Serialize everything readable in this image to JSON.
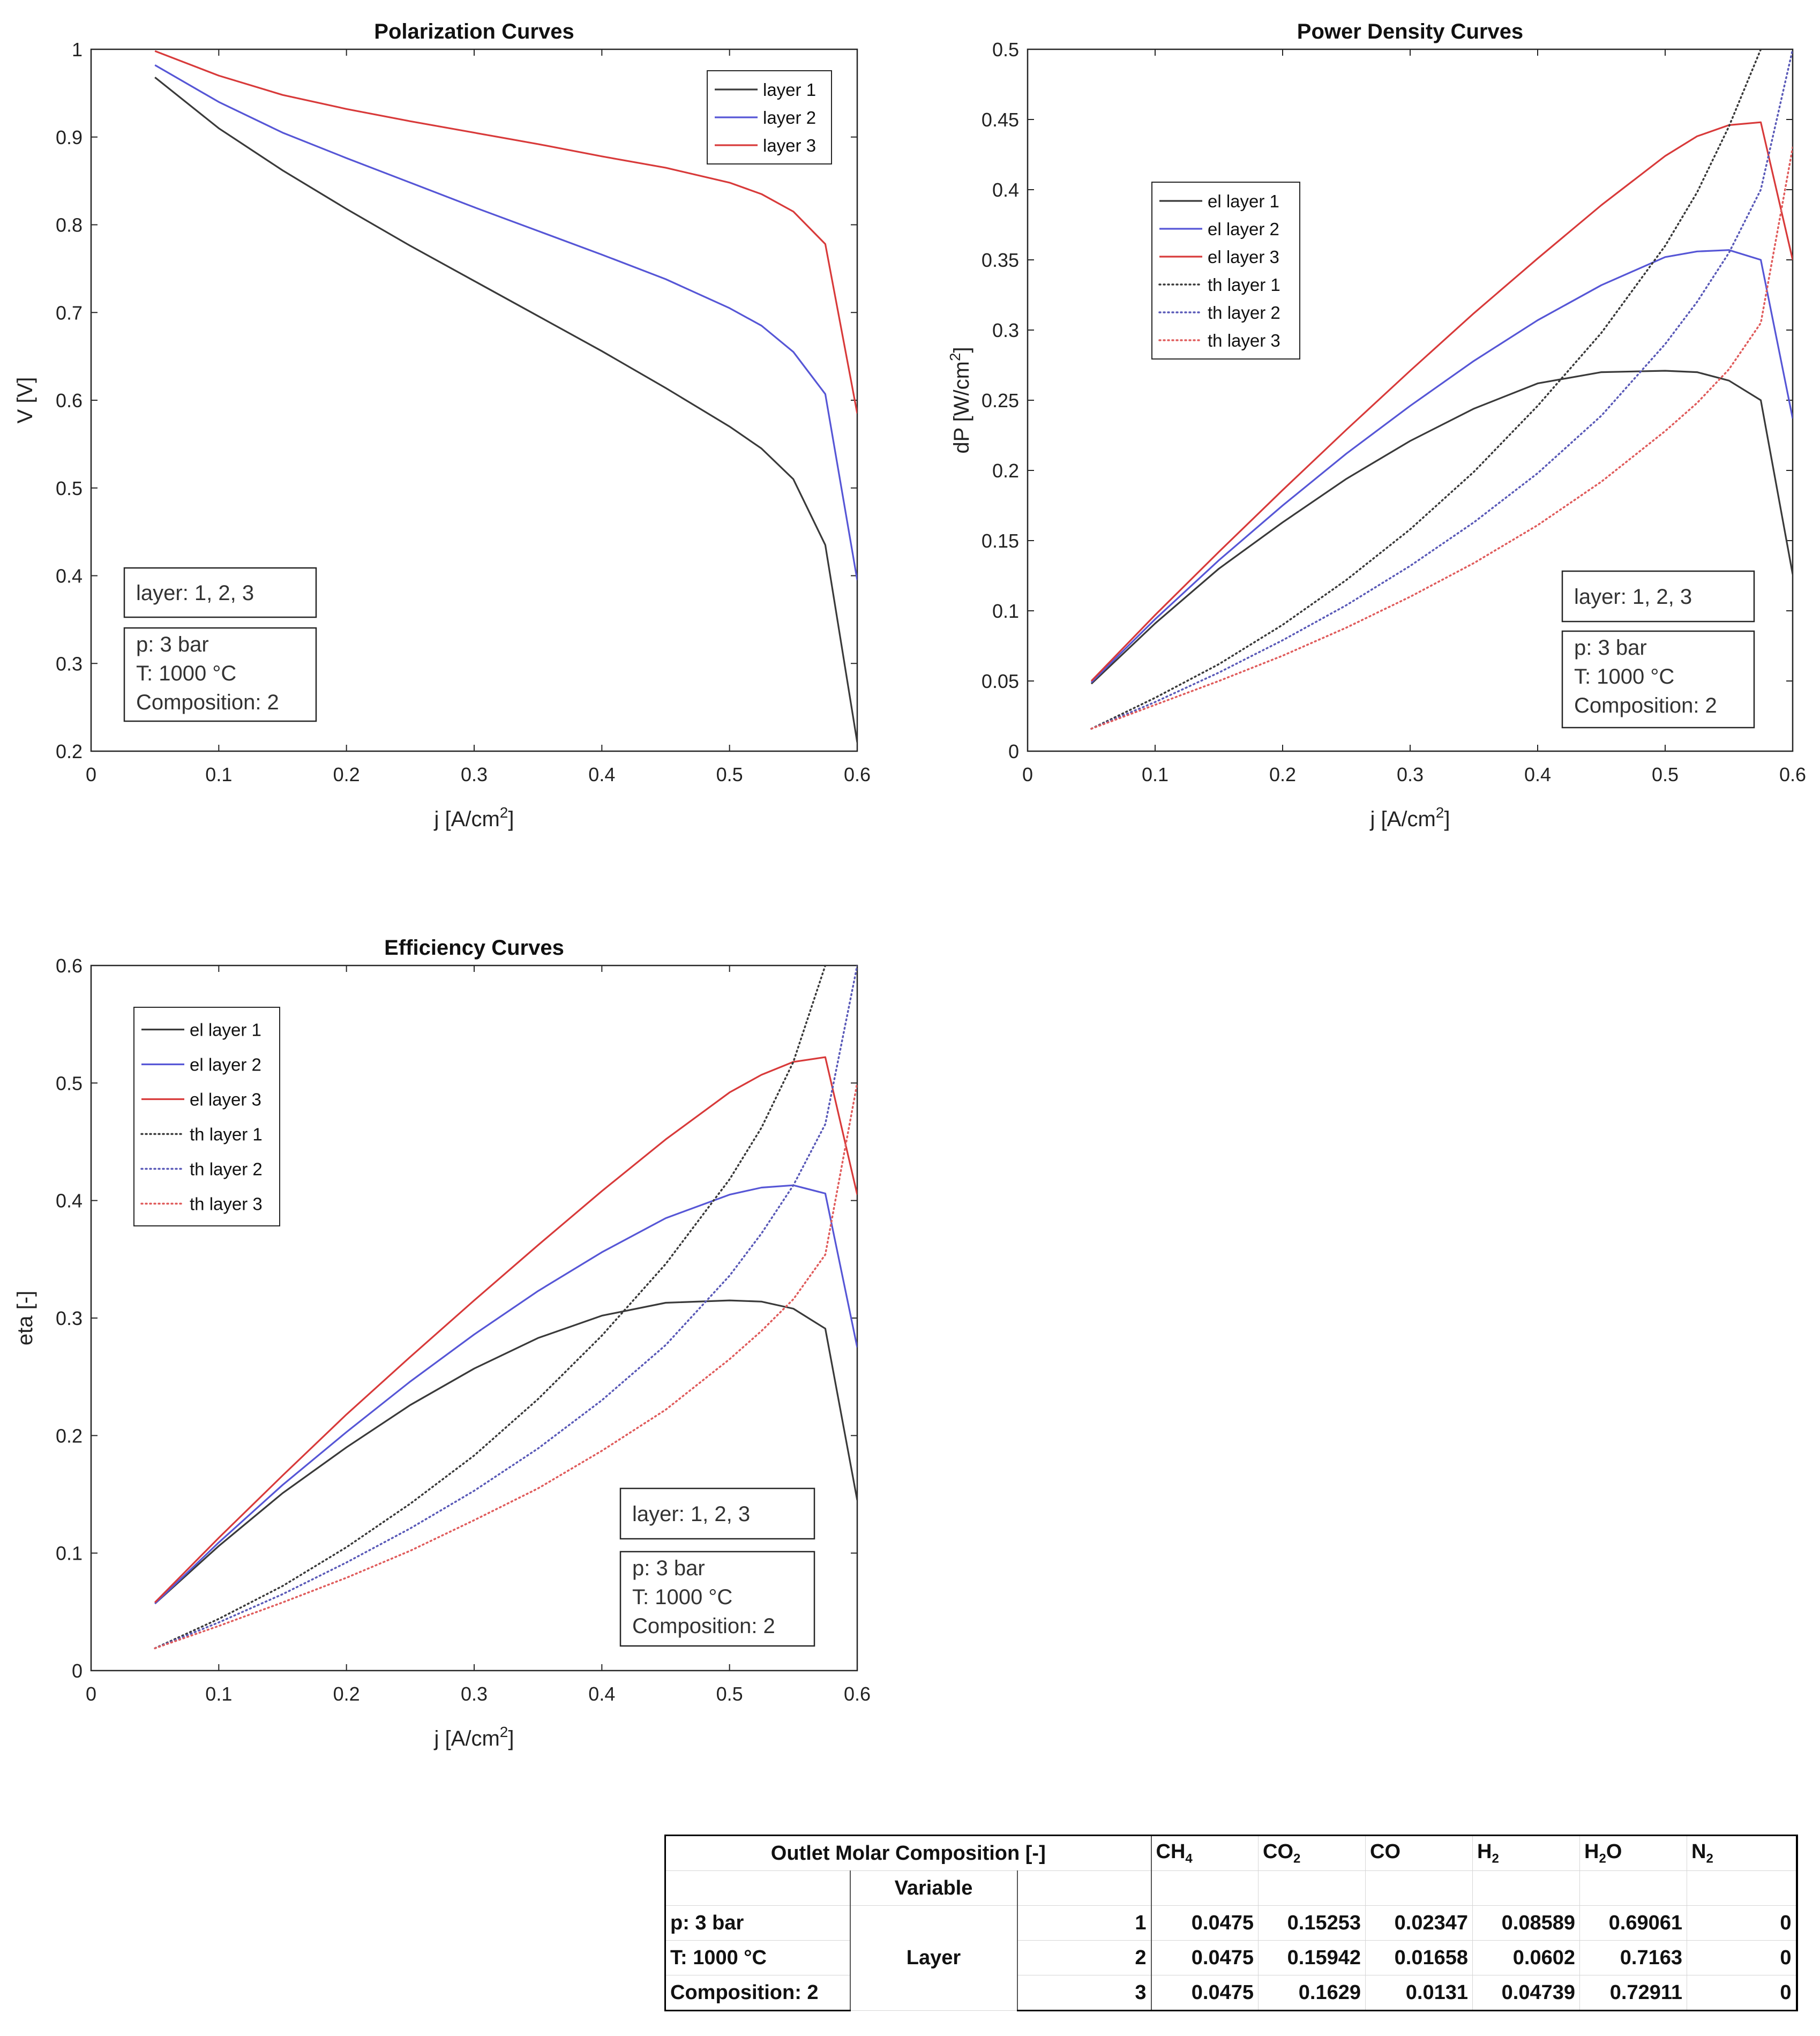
{
  "annotation": {
    "layer": "layer: 1, 2, 3",
    "pressure": "p: 3 bar",
    "temperature": "T: 1000 °C",
    "composition": "Composition: 2"
  },
  "chart_data": [
    {
      "id": "polarization",
      "type": "line",
      "title": "Polarization Curves",
      "xlabel": "j [A/cm",
      "xlabel_sup": "2",
      "xlabel_end": "]",
      "ylabel": "V [V]",
      "xlim": [
        0,
        0.6
      ],
      "ylim": [
        0.2,
        1
      ],
      "xticks": [
        0,
        0.1,
        0.2,
        0.3,
        0.4,
        0.5,
        0.6
      ],
      "yticks": [
        0.2,
        0.3,
        0.4,
        0.5,
        0.6,
        0.7,
        0.8,
        0.9,
        1
      ],
      "grid": false,
      "legend": "top-right",
      "series": [
        {
          "name": "layer 1",
          "color": "#3a3a3a",
          "style": "solid",
          "x": [
            0.05,
            0.1,
            0.15,
            0.2,
            0.25,
            0.3,
            0.35,
            0.4,
            0.45,
            0.5,
            0.525,
            0.55,
            0.575,
            0.6
          ],
          "y": [
            0.968,
            0.91,
            0.862,
            0.818,
            0.776,
            0.736,
            0.696,
            0.656,
            0.614,
            0.57,
            0.545,
            0.51,
            0.435,
            0.21
          ]
        },
        {
          "name": "layer 2",
          "color": "#5656d6",
          "style": "solid",
          "x": [
            0.05,
            0.1,
            0.15,
            0.2,
            0.25,
            0.3,
            0.35,
            0.4,
            0.45,
            0.5,
            0.525,
            0.55,
            0.575,
            0.6
          ],
          "y": [
            0.982,
            0.94,
            0.905,
            0.876,
            0.848,
            0.82,
            0.793,
            0.766,
            0.738,
            0.705,
            0.685,
            0.655,
            0.607,
            0.395
          ]
        },
        {
          "name": "layer 3",
          "color": "#d83a3a",
          "style": "solid",
          "x": [
            0.05,
            0.1,
            0.15,
            0.2,
            0.25,
            0.3,
            0.35,
            0.4,
            0.45,
            0.5,
            0.525,
            0.55,
            0.575,
            0.6
          ],
          "y": [
            0.998,
            0.97,
            0.948,
            0.932,
            0.918,
            0.905,
            0.892,
            0.878,
            0.865,
            0.848,
            0.835,
            0.815,
            0.778,
            0.585
          ]
        }
      ]
    },
    {
      "id": "power",
      "type": "line",
      "title": "Power Density Curves",
      "xlabel": "j [A/cm",
      "xlabel_sup": "2",
      "xlabel_end": "]",
      "ylabel": "dP [W/cm",
      "ylabel_sup": "2",
      "ylabel_end": "]",
      "xlim": [
        0,
        0.6
      ],
      "ylim": [
        0,
        0.5
      ],
      "xticks": [
        0,
        0.1,
        0.2,
        0.3,
        0.4,
        0.5,
        0.6
      ],
      "yticks": [
        0,
        0.05,
        0.1,
        0.15,
        0.2,
        0.25,
        0.3,
        0.35,
        0.4,
        0.45,
        0.5
      ],
      "grid": false,
      "legend": "upper-left-center",
      "series": [
        {
          "name": "el layer 1",
          "color": "#3a3a3a",
          "style": "solid",
          "x": [
            0.05,
            0.1,
            0.15,
            0.2,
            0.25,
            0.3,
            0.35,
            0.4,
            0.45,
            0.5,
            0.525,
            0.55,
            0.575,
            0.6
          ],
          "y": [
            0.048,
            0.091,
            0.13,
            0.163,
            0.194,
            0.221,
            0.244,
            0.262,
            0.27,
            0.271,
            0.27,
            0.264,
            0.25,
            0.126
          ]
        },
        {
          "name": "el layer 2",
          "color": "#5656d6",
          "style": "solid",
          "x": [
            0.05,
            0.1,
            0.15,
            0.2,
            0.25,
            0.3,
            0.35,
            0.4,
            0.45,
            0.5,
            0.525,
            0.55,
            0.575,
            0.6
          ],
          "y": [
            0.049,
            0.094,
            0.136,
            0.175,
            0.212,
            0.246,
            0.278,
            0.307,
            0.332,
            0.352,
            0.356,
            0.357,
            0.35,
            0.237
          ]
        },
        {
          "name": "el layer 3",
          "color": "#d83a3a",
          "style": "solid",
          "x": [
            0.05,
            0.1,
            0.15,
            0.2,
            0.25,
            0.3,
            0.35,
            0.4,
            0.45,
            0.5,
            0.525,
            0.55,
            0.575,
            0.6
          ],
          "y": [
            0.05,
            0.097,
            0.142,
            0.186,
            0.229,
            0.271,
            0.312,
            0.351,
            0.389,
            0.424,
            0.438,
            0.446,
            0.448,
            0.35
          ]
        },
        {
          "name": "th layer 1",
          "color": "#3a3a3a",
          "style": "dotted",
          "x": [
            0.05,
            0.1,
            0.15,
            0.2,
            0.25,
            0.3,
            0.35,
            0.4,
            0.45,
            0.5,
            0.525,
            0.55,
            0.575
          ],
          "y": [
            0.016,
            0.038,
            0.062,
            0.09,
            0.122,
            0.158,
            0.199,
            0.246,
            0.298,
            0.36,
            0.398,
            0.445,
            0.5
          ]
        },
        {
          "name": "th layer 2",
          "color": "#5a5ab8",
          "style": "dotted",
          "x": [
            0.05,
            0.1,
            0.15,
            0.2,
            0.25,
            0.3,
            0.35,
            0.4,
            0.45,
            0.5,
            0.525,
            0.55,
            0.575,
            0.6
          ],
          "y": [
            0.016,
            0.035,
            0.056,
            0.079,
            0.104,
            0.132,
            0.163,
            0.198,
            0.239,
            0.29,
            0.32,
            0.355,
            0.4,
            0.5
          ]
        },
        {
          "name": "th layer 3",
          "color": "#e05c5c",
          "style": "dotted",
          "x": [
            0.05,
            0.1,
            0.15,
            0.2,
            0.25,
            0.3,
            0.35,
            0.4,
            0.45,
            0.5,
            0.525,
            0.55,
            0.575,
            0.6
          ],
          "y": [
            0.016,
            0.033,
            0.05,
            0.068,
            0.088,
            0.11,
            0.134,
            0.161,
            0.192,
            0.228,
            0.248,
            0.272,
            0.305,
            0.43
          ]
        }
      ]
    },
    {
      "id": "efficiency",
      "type": "line",
      "title": "Efficiency Curves",
      "xlabel": "j [A/cm",
      "xlabel_sup": "2",
      "xlabel_end": "]",
      "ylabel": "eta [-]",
      "xlim": [
        0,
        0.6
      ],
      "ylim": [
        0,
        0.6
      ],
      "xticks": [
        0,
        0.1,
        0.2,
        0.3,
        0.4,
        0.5,
        0.6
      ],
      "yticks": [
        0,
        0.1,
        0.2,
        0.3,
        0.4,
        0.5,
        0.6
      ],
      "grid": false,
      "legend": "top-left",
      "series": [
        {
          "name": "el layer 1",
          "color": "#3a3a3a",
          "style": "solid",
          "x": [
            0.05,
            0.1,
            0.15,
            0.2,
            0.25,
            0.3,
            0.35,
            0.4,
            0.45,
            0.5,
            0.525,
            0.55,
            0.575,
            0.6
          ],
          "y": [
            0.057,
            0.106,
            0.151,
            0.19,
            0.226,
            0.257,
            0.283,
            0.302,
            0.313,
            0.315,
            0.314,
            0.308,
            0.291,
            0.145
          ]
        },
        {
          "name": "el layer 2",
          "color": "#5656d6",
          "style": "solid",
          "x": [
            0.05,
            0.1,
            0.15,
            0.2,
            0.25,
            0.3,
            0.35,
            0.4,
            0.45,
            0.5,
            0.525,
            0.55,
            0.575,
            0.6
          ],
          "y": [
            0.057,
            0.109,
            0.158,
            0.203,
            0.246,
            0.286,
            0.323,
            0.356,
            0.385,
            0.405,
            0.411,
            0.413,
            0.406,
            0.275
          ]
        },
        {
          "name": "el layer 3",
          "color": "#d83a3a",
          "style": "solid",
          "x": [
            0.05,
            0.1,
            0.15,
            0.2,
            0.25,
            0.3,
            0.35,
            0.4,
            0.45,
            0.5,
            0.525,
            0.55,
            0.575,
            0.6
          ],
          "y": [
            0.058,
            0.113,
            0.166,
            0.218,
            0.267,
            0.315,
            0.362,
            0.408,
            0.452,
            0.492,
            0.507,
            0.518,
            0.522,
            0.405
          ]
        },
        {
          "name": "th layer 1",
          "color": "#3a3a3a",
          "style": "dotted",
          "x": [
            0.05,
            0.1,
            0.15,
            0.2,
            0.25,
            0.3,
            0.35,
            0.4,
            0.45,
            0.5,
            0.525,
            0.55,
            0.575
          ],
          "y": [
            0.019,
            0.044,
            0.072,
            0.105,
            0.142,
            0.183,
            0.231,
            0.285,
            0.346,
            0.418,
            0.462,
            0.518,
            0.6
          ]
        },
        {
          "name": "th layer 2",
          "color": "#5a5ab8",
          "style": "dotted",
          "x": [
            0.05,
            0.1,
            0.15,
            0.2,
            0.25,
            0.3,
            0.35,
            0.4,
            0.45,
            0.5,
            0.525,
            0.55,
            0.575,
            0.6
          ],
          "y": [
            0.019,
            0.041,
            0.065,
            0.092,
            0.121,
            0.153,
            0.189,
            0.23,
            0.277,
            0.336,
            0.372,
            0.413,
            0.465,
            0.6
          ]
        },
        {
          "name": "th layer 3",
          "color": "#e05c5c",
          "style": "dotted",
          "x": [
            0.05,
            0.1,
            0.15,
            0.2,
            0.25,
            0.3,
            0.35,
            0.4,
            0.45,
            0.5,
            0.525,
            0.55,
            0.575,
            0.6
          ],
          "y": [
            0.019,
            0.038,
            0.058,
            0.079,
            0.102,
            0.128,
            0.155,
            0.187,
            0.222,
            0.265,
            0.289,
            0.316,
            0.354,
            0.5
          ]
        }
      ]
    }
  ],
  "table": {
    "title": "Outlet Molar Composition [-]",
    "variable_label": "Variable",
    "species": [
      {
        "base": "CH",
        "sub": "4",
        "rest": ""
      },
      {
        "base": "CO",
        "sub": "2",
        "rest": ""
      },
      {
        "base": "CO",
        "sub": "",
        "rest": ""
      },
      {
        "base": "H",
        "sub": "2",
        "rest": ""
      },
      {
        "base": "H",
        "sub": "2",
        "rest": "O"
      },
      {
        "base": "N",
        "sub": "2",
        "rest": ""
      }
    ],
    "group_label": "Layer",
    "rows": [
      {
        "condition": "p: 3 bar",
        "index": "1",
        "values": [
          "0.0475",
          "0.15253",
          "0.02347",
          "0.08589",
          "0.69061",
          "0"
        ]
      },
      {
        "condition": "T: 1000 °C",
        "index": "2",
        "values": [
          "0.0475",
          "0.15942",
          "0.01658",
          "0.0602",
          "0.7163",
          "0"
        ]
      },
      {
        "condition": "Composition: 2",
        "index": "3",
        "values": [
          "0.0475",
          "0.1629",
          "0.0131",
          "0.04739",
          "0.72911",
          "0"
        ]
      }
    ]
  }
}
